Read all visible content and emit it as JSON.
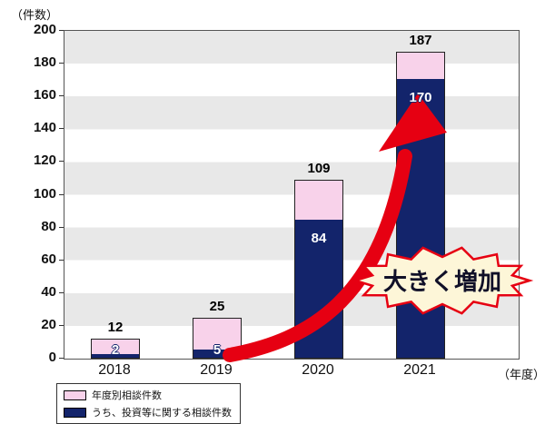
{
  "chart_data": {
    "type": "bar",
    "y_axis": {
      "unit": "（件数）",
      "min": 0,
      "max": 200,
      "step": 20
    },
    "x_axis": {
      "unit": "（年度）",
      "categories": [
        "2018",
        "2019",
        "2020",
        "2021"
      ]
    },
    "series": [
      {
        "name": "年度別相談件数",
        "values": [
          12,
          25,
          109,
          187
        ],
        "color": "#f8d2ea"
      },
      {
        "name": "うち、投資等に関する相談件数",
        "values": [
          2,
          5,
          84,
          170
        ],
        "color": "#13246b"
      }
    ],
    "grid": "striped-horizontal-bands",
    "legend_position": "bottom-left",
    "annotation": {
      "text": "大きく増加",
      "shape": "starburst",
      "fill": "#fdf6d8",
      "border_color": "#e60012",
      "text_color": "#101028",
      "arrow_color": "#e60012"
    }
  }
}
